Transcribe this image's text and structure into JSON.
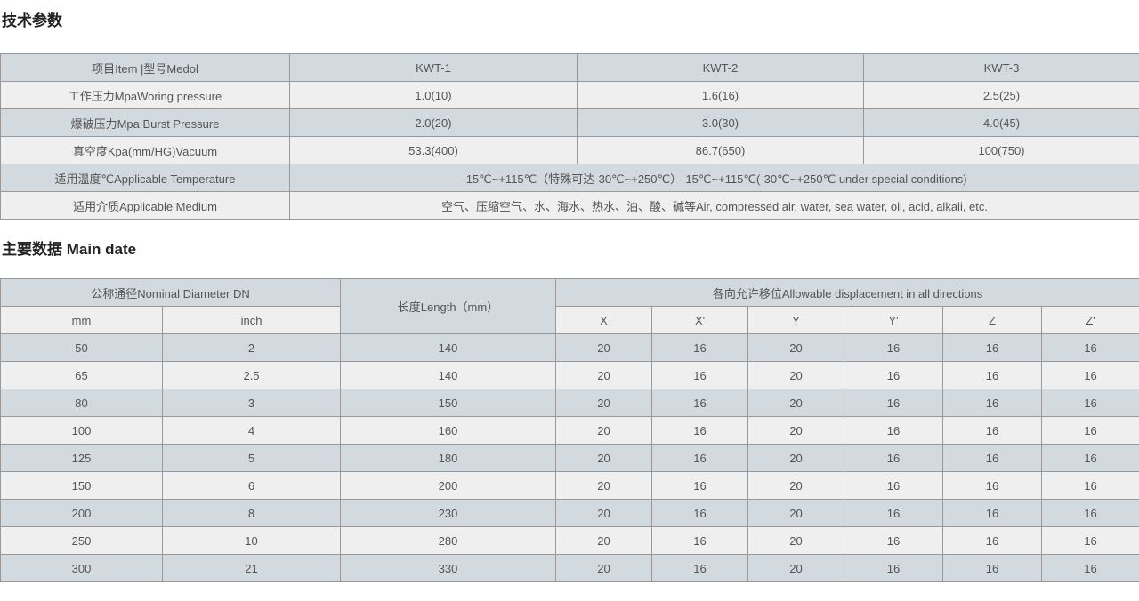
{
  "titles": {
    "tech_params": "技术参数",
    "main_data": "主要数据 Main date"
  },
  "colors": {
    "band_blue_gray": "#d2d9df",
    "band_light": "#efefef",
    "border": "#999999",
    "text": "#555555",
    "title_text": "#222222"
  },
  "tech_table": {
    "header": {
      "item_label": "项目Item |型号Medol",
      "model1": "KWT-1",
      "model2": "KWT-2",
      "model3": "KWT-3"
    },
    "rows": [
      {
        "label": "工作压力MpaWoring pressure",
        "values": [
          "1.0(10)",
          "1.6(16)",
          "2.5(25)"
        ]
      },
      {
        "label": "爆破压力Mpa Burst Pressure",
        "values": [
          "2.0(20)",
          "3.0(30)",
          "4.0(45)"
        ]
      },
      {
        "label": "真空度Kpa(mm/HG)Vacuum",
        "values": [
          "53.3(400)",
          "86.7(650)",
          "100(750)"
        ]
      }
    ],
    "span_rows": [
      {
        "label": "适用温度℃Applicable Temperature",
        "value": "-15℃~+115℃（特殊可达-30℃~+250℃）-15℃~+115℃(-30℃~+250℃ under special conditions)"
      },
      {
        "label": "适用介质Applicable Medium",
        "value": "空气、压缩空气、水、海水、热水、油、酸、碱等Air, compressed air, water, sea water, oil, acid, alkali, etc."
      }
    ]
  },
  "main_table": {
    "group_headers": {
      "diameter": "公称通径Nominal Diameter DN",
      "length": "长度Length（mm）",
      "displacement": "各向允许移位Allowable displacement in all directions"
    },
    "sub_headers": {
      "mm": "mm",
      "inch": "inch",
      "x": "X",
      "x2": "X'",
      "y": "Y",
      "y2": "Y'",
      "z": "Z",
      "z2": "Z'"
    },
    "rows": [
      [
        "50",
        "2",
        "140",
        "20",
        "16",
        "20",
        "16",
        "16",
        "16"
      ],
      [
        "65",
        "2.5",
        "140",
        "20",
        "16",
        "20",
        "16",
        "16",
        "16"
      ],
      [
        "80",
        "3",
        "150",
        "20",
        "16",
        "20",
        "16",
        "16",
        "16"
      ],
      [
        "100",
        "4",
        "160",
        "20",
        "16",
        "20",
        "16",
        "16",
        "16"
      ],
      [
        "125",
        "5",
        "180",
        "20",
        "16",
        "20",
        "16",
        "16",
        "16"
      ],
      [
        "150",
        "6",
        "200",
        "20",
        "16",
        "20",
        "16",
        "16",
        "16"
      ],
      [
        "200",
        "8",
        "230",
        "20",
        "16",
        "20",
        "16",
        "16",
        "16"
      ],
      [
        "250",
        "10",
        "280",
        "20",
        "16",
        "20",
        "16",
        "16",
        "16"
      ],
      [
        "300",
        "21",
        "330",
        "20",
        "16",
        "20",
        "16",
        "16",
        "16"
      ]
    ]
  }
}
